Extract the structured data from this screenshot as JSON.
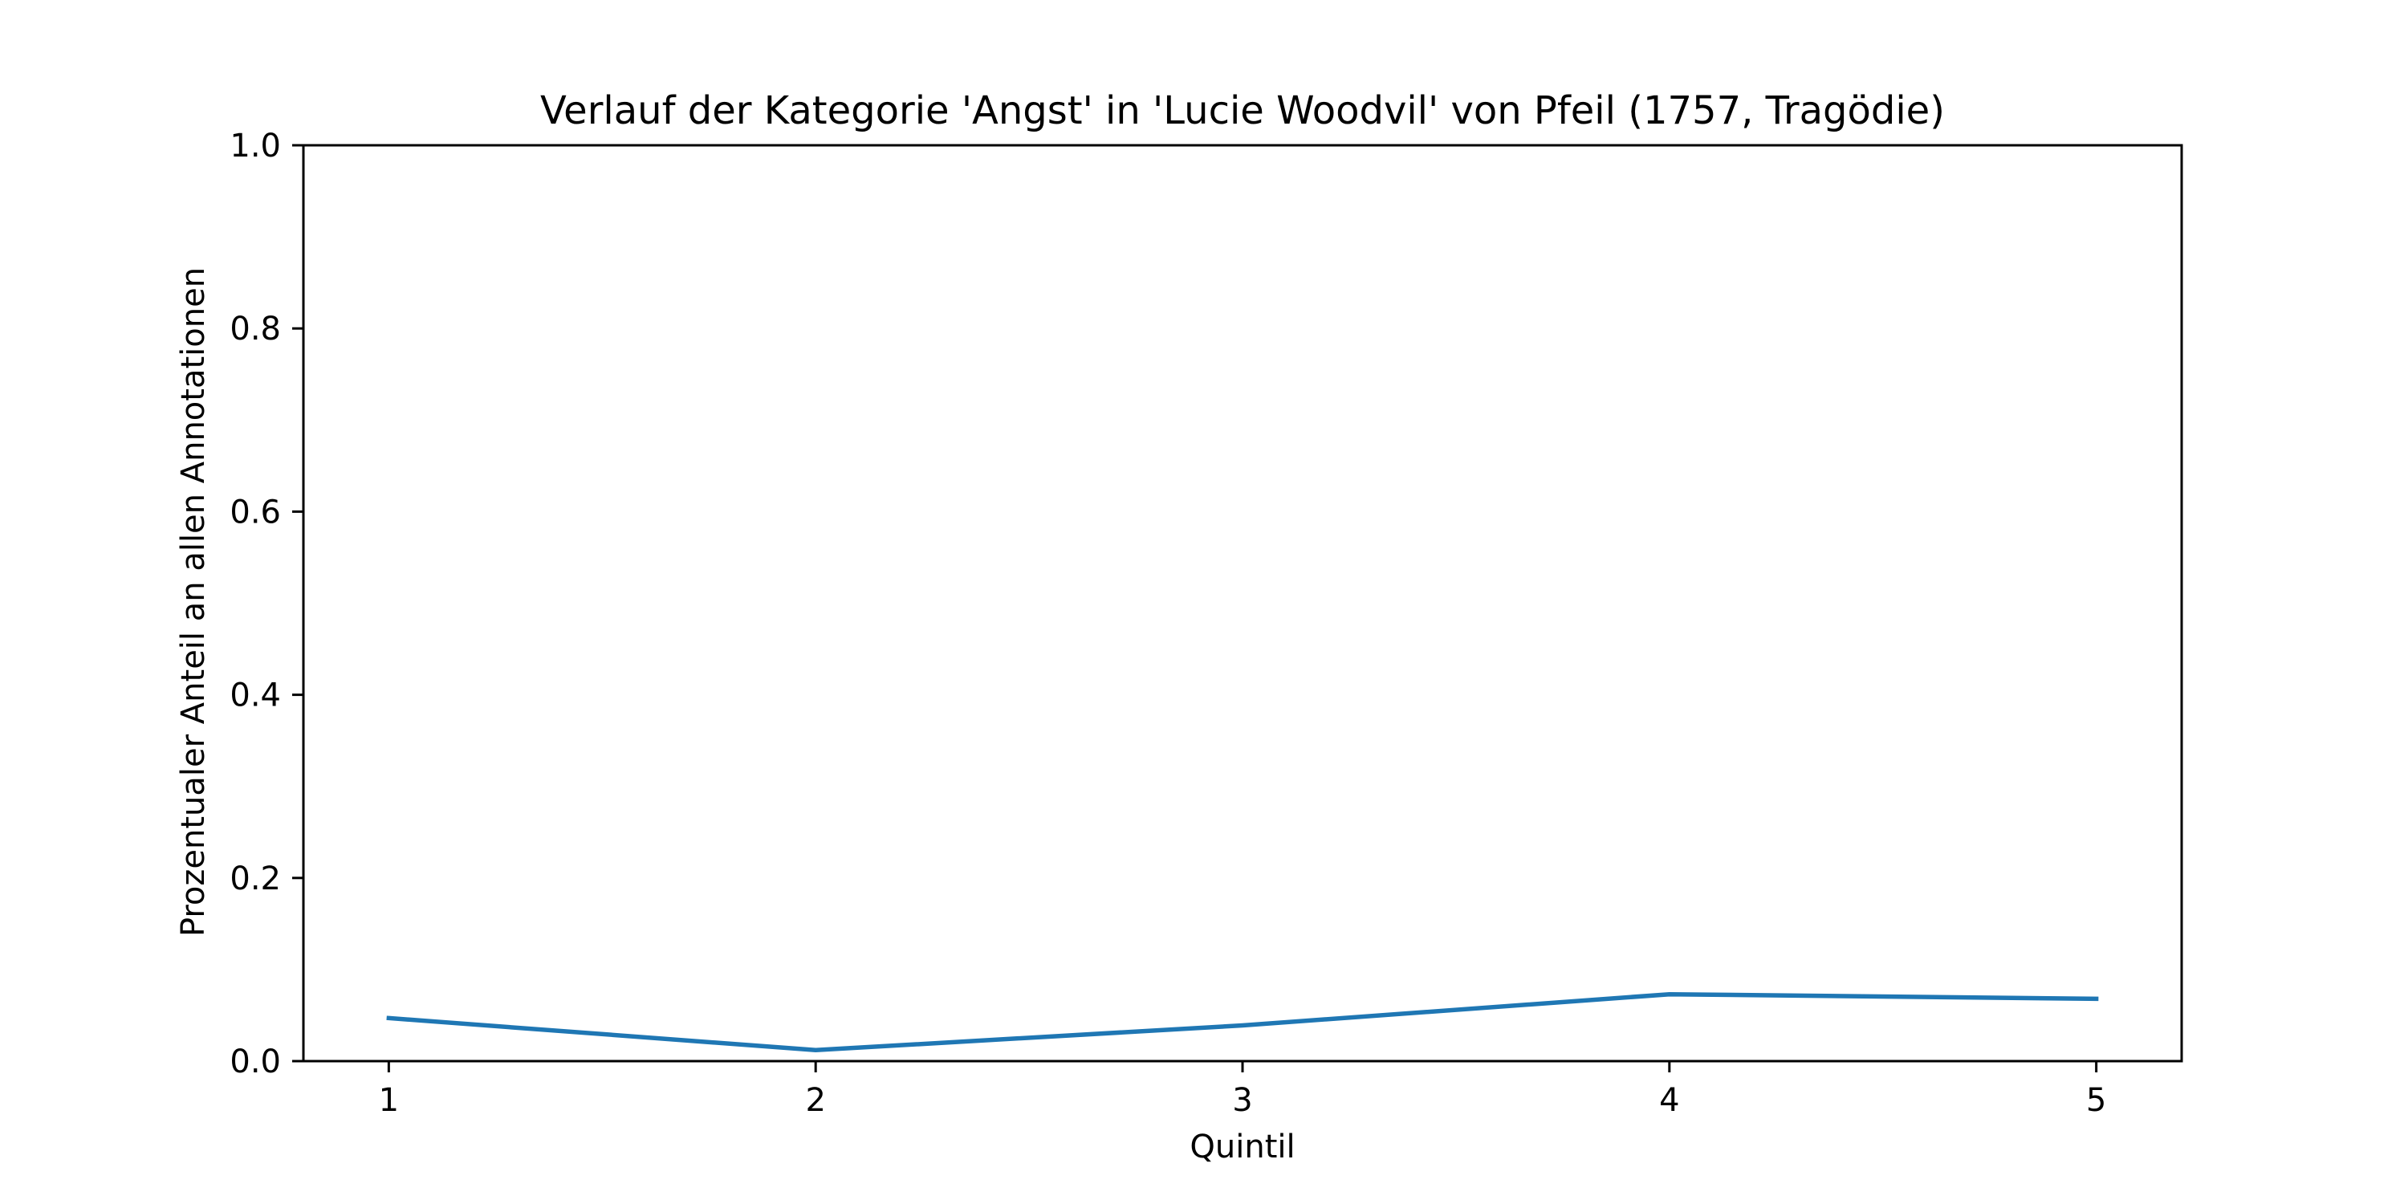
{
  "chart_data": {
    "type": "line",
    "title": "Verlauf der Kategorie 'Angst' in 'Lucie Woodvil' von Pfeil (1757, Tragödie)",
    "xlabel": "Quintil",
    "ylabel": "Prozentualer Anteil an allen Annotationen",
    "x": [
      1,
      2,
      3,
      4,
      5
    ],
    "series": [
      {
        "values": [
          0.047,
          0.012,
          0.039,
          0.073,
          0.068
        ],
        "color": "#1f77b4"
      }
    ],
    "xlim": [
      0.8,
      5.2
    ],
    "ylim": [
      0.0,
      1.0
    ],
    "xticks": [
      1,
      2,
      3,
      4,
      5
    ],
    "xtick_labels": [
      "1",
      "2",
      "3",
      "4",
      "5"
    ],
    "yticks": [
      0.0,
      0.2,
      0.4,
      0.6,
      0.8,
      1.0
    ],
    "ytick_labels": [
      "0.0",
      "0.2",
      "0.4",
      "0.6",
      "0.8",
      "1.0"
    ],
    "grid": false,
    "legend": "none"
  }
}
